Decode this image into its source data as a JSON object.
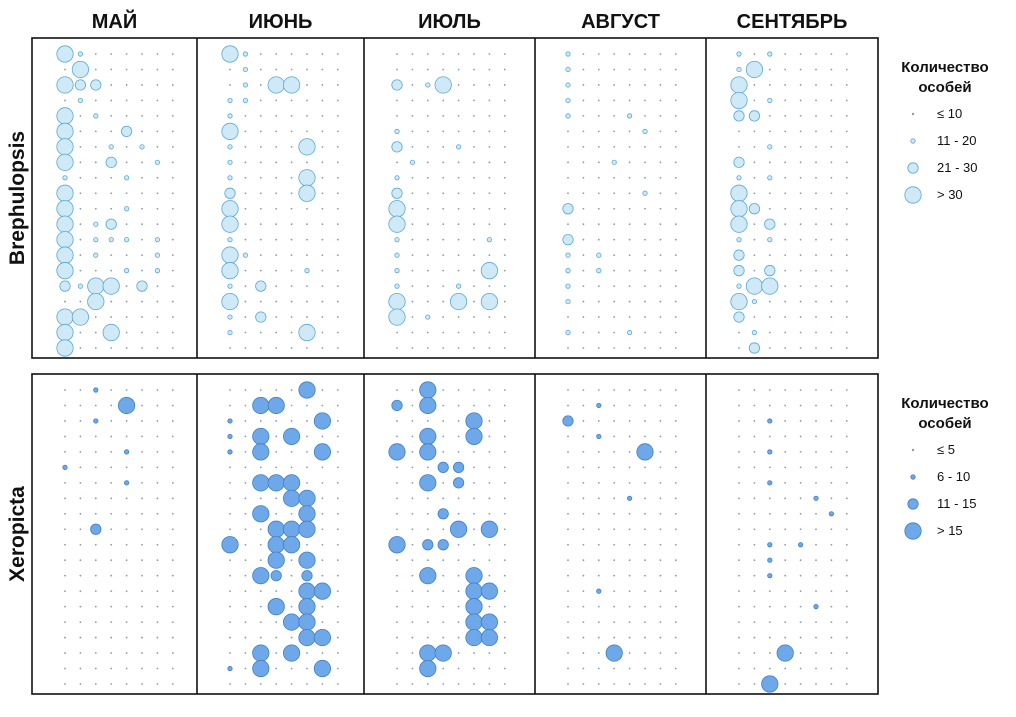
{
  "chart_data": {
    "type": "scatter",
    "subtype": "bubble-grid",
    "months": [
      "МАЙ",
      "ИЮНЬ",
      "ИЮЛЬ",
      "АВГУСТ",
      "СЕНТЯБРЬ"
    ],
    "colors": {
      "brephulopsis_fill": "#cfe9f7",
      "brephulopsis_stroke": "#5aa8d6",
      "xeropicta_fill": "#6ea8e8",
      "xeropicta_stroke": "#3f7fc8",
      "dot": "#8a9aa8",
      "frame": "#111111"
    },
    "panels": [
      {
        "genus": "Brephulopsis",
        "legend": {
          "title_line1": "Количество",
          "title_line2": "особей",
          "classes": [
            "≤ 10",
            "11 - 20",
            "21 - 30",
            ">  30"
          ]
        },
        "grid": [
          [
            "3100000000000000000000000",
            "3100000000000000000000000",
            "0000000000000000000000000",
            "1000000000000000000000000",
            "1010000000000000000000000"
          ],
          [
            "0300000000000000000000000",
            "0100000000000000000000000",
            "0000000000000000000000000",
            "1000000000000000000000000",
            "1300000000000000000000000"
          ],
          [
            "3220000000000000000000000",
            "0103300000000000000000000",
            "2013000000000000000000000",
            "1000000000000000000000000",
            "3000000000000000000000000"
          ],
          [
            "0100000000000000000000000",
            "1100000000000000000000000",
            "0000000000000000000000000",
            "1000000000000000000000000",
            "3010000000000000000000000"
          ],
          [
            "3010000000000000000000000",
            "1000000000000000000000000",
            "0000000000000000000000000",
            "1000100000000000000000000",
            "2200000000000000000000000"
          ],
          [
            "3000200000000000000000000",
            "3000000000000000000000000",
            "1000000000000000000000000",
            "0000010000000000000000000",
            "0000000000000000000000000"
          ],
          [
            "3001010000000000000000000",
            "1000030000000000000000000",
            "2000100000000000000000000",
            "0000000000000000000000000",
            "0010000000000000000000000"
          ],
          [
            "3002001000000000000000000",
            "1000000000000000000000000",
            "0100000000000000000000000",
            "0001000000000000000000000",
            "2000000000000000000000000"
          ],
          [
            "1000100000000000000000000",
            "1000030000000000000000000",
            "1000000000000000000000000",
            "0000000000000000000000000",
            "1010000000000000000000000"
          ],
          [
            "3000000000000000000000000",
            "2000030000000000000000000",
            "2000000000000000000000000",
            "0000010000000000000000000",
            "3000000000000000000000000"
          ],
          [
            "3000100000000000000000000",
            "3000000000000000000000000",
            "3000000000000000000000000",
            "2000000000000000000000000",
            "3200000000000000000000000"
          ],
          [
            "3012000000000000000000000",
            "3000000000000000000000000",
            "3000000000000000000000000",
            "0000000000000000000000000",
            "3020000000000000000000000"
          ],
          [
            "3011101000000000000000000",
            "1000000000000000000000000",
            "1000001000000000000000000",
            "2000000000000000000000000",
            "1010000000000000000000000"
          ],
          [
            "3010001000000000000000000",
            "3100000000000000000000000",
            "1000000000000000000000000",
            "1010000000000000000000000",
            "2000000000000000000000000"
          ],
          [
            "3000101000000000000000000",
            "3000010000000000000000000",
            "1000003000000000000000000",
            "1010000000000000000000000",
            "2020000000000000000000000"
          ],
          [
            "2133020000000000000000000",
            "1020000000000000000000000",
            "1000100000000000000000000",
            "1000000000000000000000000",
            "1330000000000000000000000"
          ],
          [
            "0030000000000000000000000",
            "3000000000000000000000000",
            "3000303000000000000000000",
            "1000000000000000000000000",
            "3100000000000000000000000"
          ],
          [
            "3300000000000000000000000",
            "1020000000000000000000000",
            "3010000000000000000000000",
            "0000000000000000000000000",
            "2000000000000000000000000"
          ],
          [
            "3003000000000000000000000",
            "1000030000000000000000000",
            "0000000000000000000000000",
            "1000100000000000000000000",
            "0100000000000000000000000"
          ],
          [
            "3000000000000000000000000",
            "0000000000000000000000000",
            "0000000000000000000000000",
            "0000000000000000000000000",
            "0200000000000000000000000"
          ]
        ]
      },
      {
        "genus": "Xeropicta",
        "legend": {
          "title_line1": "Количество",
          "title_line2": "особей",
          "classes": [
            "≤  5",
            "6 - 10",
            "11 - 15",
            ">  15"
          ]
        },
        "grid": [
          [
            "0010000000000000000000000",
            "0000030000000000000000000",
            "0030000000000000000000000",
            "0000000000000000000000000",
            "0000000000000000000000000"
          ],
          [
            "0000300000000000000000000",
            "0033000000000000000000000",
            "2030000000000000000000000",
            "0010000000000000000000000",
            "0000000000000000000000000"
          ],
          [
            "0010000000000000000000000",
            "1000003000000000000000000",
            "0000030000000000000000000",
            "2000000000000000000000000",
            "0010000000000000000000000"
          ],
          [
            "0000000000000000000000000",
            "1030300000000000000000000",
            "0030030000000000000000000",
            "0010000000000000000000000",
            "0000000000000000000000000"
          ],
          [
            "0000100000000000000000000",
            "1030003000000000000000000",
            "3030000000000000000000000",
            "0000030000000000000000000",
            "0010000000000000000000000"
          ],
          [
            "1000000000000000000000000",
            "0000000000000000000000000",
            "0002200000000000000000000",
            "0000000000000000000000000",
            "0000000000000000000000000"
          ],
          [
            "0000100000000000000000000",
            "0033300000000000000000000",
            "0030200000000000000000000",
            "0000000000000000000000000",
            "0010000000000000000000000"
          ],
          [
            "0000000000000000000000000",
            "0000330000000000000000000",
            "0000000000000000000000000",
            "0000100000000000000000000",
            "0000010000000000000000000"
          ],
          [
            "0000000000000000000000000",
            "0030030000000000000000000",
            "0002000000000000000000000",
            "0000000000000000000000000",
            "0000001000000000000000000"
          ],
          [
            "0020000000000000000000000",
            "0003330000000000000000000",
            "0000303000000000000000000",
            "0000000000000000000000000",
            "0000000000000000000000000"
          ],
          [
            "0000000000000000000000000",
            "3003300000000000000000000",
            "3022000000000000000000000",
            "0000000000000000000000000",
            "0010100000000000000000000"
          ],
          [
            "0000000000000000000000000",
            "0003030000000000000000000",
            "0000000000000000000000000",
            "0000000000000000000000000",
            "0010000000000000000000000"
          ],
          [
            "0000000000000000000000000",
            "0032020000000000000000000",
            "0030030000000000000000000",
            "0000000000000000000000000",
            "0010000000000000000000000"
          ],
          [
            "0000000000000000000000000",
            "0000033000000000000000000",
            "0000033000000000000000000",
            "0010000000000000000000000",
            "0000000000000000000000000"
          ],
          [
            "0000000000000000000000000",
            "0003030000000000000000000",
            "0000030000000000000000000",
            "0000000000000000000000000",
            "0000010000000000000000000"
          ],
          [
            "0000000000000000000000000",
            "0000330000000000000000000",
            "0000033000000000000000000",
            "0000000000000000000000000",
            "0000000000000000000000000"
          ],
          [
            "0000000000000000000000000",
            "0000033000000000000000000",
            "0000033000000000000000000",
            "0000000000000000000000000",
            "0000000000000000000000000"
          ],
          [
            "0000000000000000000000000",
            "0030300000000000000000000",
            "0033000000000000000000000",
            "0003000000000000000000000",
            "0003000000000000000000000"
          ],
          [
            "0000000000000000000000000",
            "1030003000000000000000000",
            "0030000000000000000000000",
            "0000000000000000000000000",
            "0000000000000000000000000"
          ],
          [
            "0000000000000000000000000",
            "0000000000000000000000000",
            "0000000000000000000000000",
            "0000000000000000000000000",
            "0030000000000000000000000"
          ]
        ]
      }
    ]
  }
}
